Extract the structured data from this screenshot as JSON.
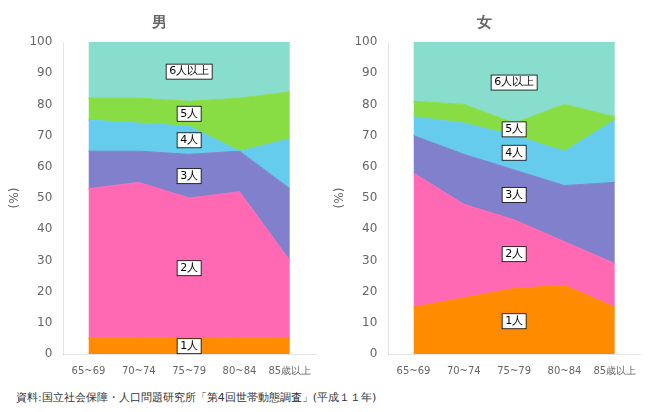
{
  "chart_data": [
    {
      "type": "area",
      "title": "男",
      "ylabel": "(%)",
      "stacked": true,
      "grid": false,
      "categories": [
        "65~69",
        "70~74",
        "75~79",
        "80~84",
        "85歳以上"
      ],
      "ylim": [
        0,
        100
      ],
      "yticks": [
        0,
        10,
        20,
        30,
        40,
        50,
        60,
        70,
        80,
        90,
        100
      ],
      "series": [
        {
          "name": "1人",
          "color": "#FF8C00",
          "values": [
            5,
            5,
            5,
            5,
            5
          ]
        },
        {
          "name": "2人",
          "color": "#FF69B4",
          "values": [
            48,
            50,
            45,
            47,
            25
          ]
        },
        {
          "name": "3人",
          "color": "#8080CC",
          "values": [
            12,
            10,
            14,
            13,
            23
          ]
        },
        {
          "name": "4人",
          "color": "#66CCEE",
          "values": [
            10,
            9,
            9,
            0,
            16
          ]
        },
        {
          "name": "5人",
          "color": "#88DD44",
          "values": [
            7,
            8,
            8,
            17,
            15
          ]
        },
        {
          "name": "6人以上",
          "color": "#88DDCC",
          "values": [
            18,
            18,
            19,
            18,
            16
          ]
        }
      ]
    },
    {
      "type": "area",
      "title": "女",
      "ylabel": "(%)",
      "stacked": true,
      "grid": false,
      "categories": [
        "65~69",
        "70~74",
        "75~79",
        "80~84",
        "85歳以上"
      ],
      "ylim": [
        0,
        100
      ],
      "yticks": [
        0,
        10,
        20,
        30,
        40,
        50,
        60,
        70,
        80,
        90,
        100
      ],
      "series": [
        {
          "name": "1人",
          "color": "#FF8C00",
          "values": [
            15,
            18,
            21,
            22,
            15
          ]
        },
        {
          "name": "2人",
          "color": "#FF69B4",
          "values": [
            43,
            30,
            22,
            14,
            14
          ]
        },
        {
          "name": "3人",
          "color": "#8080CC",
          "values": [
            12,
            16,
            16,
            18,
            26
          ]
        },
        {
          "name": "4人",
          "color": "#66CCEE",
          "values": [
            6,
            10,
            11,
            11,
            20
          ]
        },
        {
          "name": "5人",
          "color": "#88DD44",
          "values": [
            5,
            6,
            4,
            15,
            1
          ]
        },
        {
          "name": "6人以上",
          "color": "#88DDCC",
          "values": [
            19,
            20,
            26,
            20,
            24
          ]
        }
      ]
    }
  ],
  "footer": "資料:国立社会保障・人口問題研究所「第4回世帯動態調査」(平成１１年)"
}
